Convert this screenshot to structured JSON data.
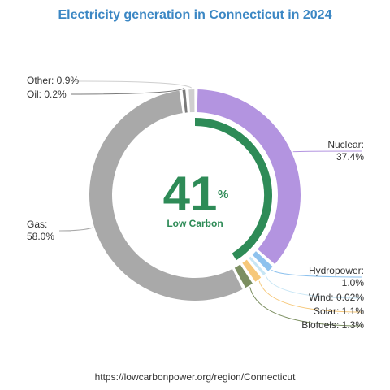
{
  "title": "Electricity generation in Connecticut in 2024",
  "source": "https://lowcarbonpower.org/region/Connecticut",
  "center": {
    "value": "41",
    "unit": "%",
    "caption": "Low Carbon"
  },
  "chart_data": {
    "type": "donut",
    "title": "Electricity generation in Connecticut in 2024",
    "low_carbon_percent": 41,
    "series": [
      {
        "name": "Nuclear",
        "value": 37.4,
        "color": "#b394e0",
        "label_line1": "Nuclear:",
        "label_line2": "37.4%",
        "side": "right"
      },
      {
        "name": "Hydropower",
        "value": 1.0,
        "color": "#8ec2ee",
        "label_line1": "Hydropower:",
        "label_line2": "1.0%",
        "side": "right"
      },
      {
        "name": "Wind",
        "value": 0.02,
        "color": "#c8e6f5",
        "label_line1": "Wind: 0.02%",
        "label_line2": "",
        "side": "right"
      },
      {
        "name": "Solar",
        "value": 1.1,
        "color": "#f6c87a",
        "label_line1": "Solar: 1.1%",
        "label_line2": "",
        "side": "right"
      },
      {
        "name": "Biofuels",
        "value": 1.3,
        "color": "#7c8f61",
        "label_line1": "Biofuels: 1.3%",
        "label_line2": "",
        "side": "right"
      },
      {
        "name": "Gas",
        "value": 58.0,
        "color": "#a9a9a9",
        "label_line1": "Gas:",
        "label_line2": "58.0%",
        "side": "left"
      },
      {
        "name": "Oil",
        "value": 0.2,
        "color": "#7a7a7a",
        "label_line1": "Oil: 0.2%",
        "label_line2": "",
        "side": "left"
      },
      {
        "name": "Other",
        "value": 0.9,
        "color": "#cfcfcf",
        "label_line1": "Other: 0.9%",
        "label_line2": "",
        "side": "left"
      }
    ]
  }
}
